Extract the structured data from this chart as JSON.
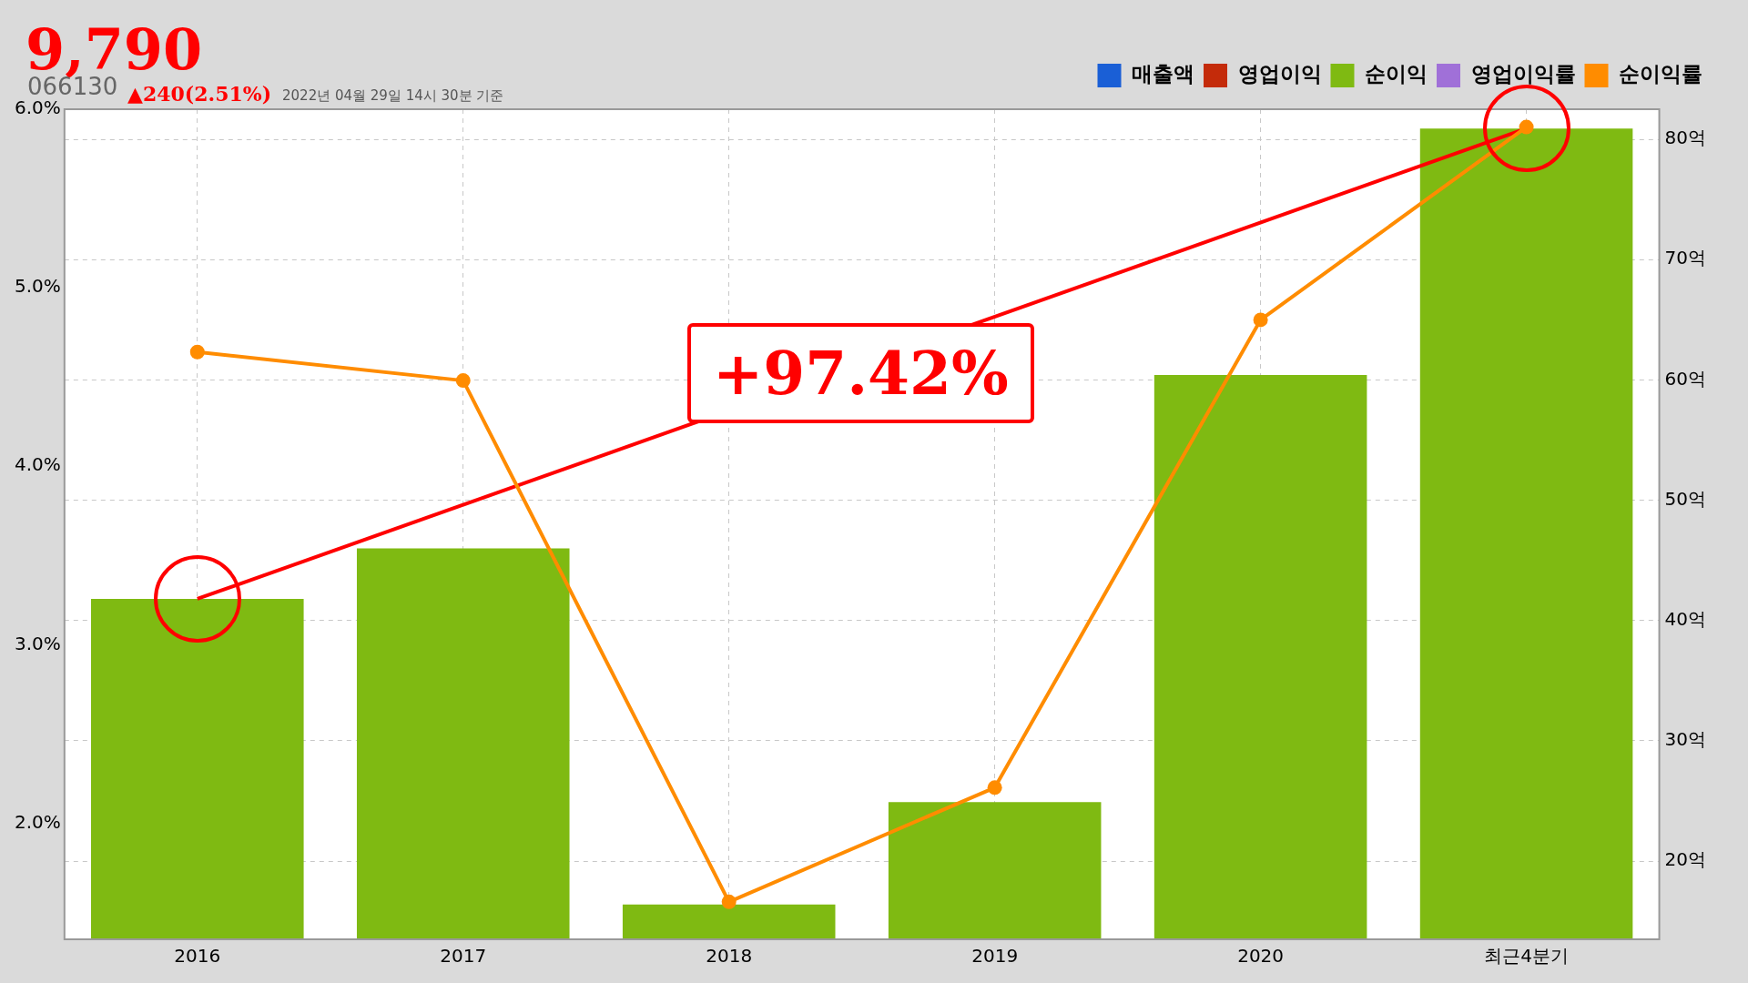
{
  "chart_data": {
    "type": "bar",
    "title": "9,790",
    "subtitle": "▲240(2.51%)",
    "annotations": [
      "066130",
      "2022년 04월 29일 14시 30분 기준",
      "+97.42%"
    ],
    "categories": [
      "2016",
      "2017",
      "2018",
      "2019",
      "2020",
      "최근4분기"
    ],
    "series": [
      {
        "name": "매출액",
        "type": "bar",
        "axis": "y2",
        "color": "#1a5fd6",
        "values": [
          null,
          null,
          null,
          null,
          null,
          null
        ]
      },
      {
        "name": "영업이익",
        "type": "bar",
        "axis": "y2",
        "color": "#c42b0a",
        "values": [
          null,
          null,
          null,
          null,
          null,
          null
        ]
      },
      {
        "name": "순이익",
        "type": "bar",
        "axis": "y2",
        "color": "#7fba12",
        "values": [
          41.8,
          46.0,
          16.4,
          24.9,
          60.4,
          80.9
        ]
      },
      {
        "name": "영업이익률",
        "type": "line",
        "color": "#a070d8",
        "values": [
          null,
          null,
          null,
          null,
          null,
          null
        ]
      },
      {
        "name": "순이익률",
        "type": "line",
        "color": "#ff8c00",
        "marker": "circle",
        "values": [
          4.64,
          4.48,
          1.56,
          2.2,
          4.82,
          5.9
        ]
      },
      {
        "type": "line",
        "axis": "y2",
        "color": "#ff0000",
        "values": [
          41.8,
          null,
          null,
          null,
          null,
          80.9
        ]
      }
    ],
    "ylim": [
      1.35,
      6.0
    ],
    "yticks": [
      {
        "value": 2,
        "label": "2.0%"
      },
      {
        "value": 3,
        "label": "3.0%"
      },
      {
        "value": 4,
        "label": "4.0%"
      },
      {
        "value": 5,
        "label": "5.0%"
      },
      {
        "value": 6,
        "label": "6.0%"
      }
    ],
    "y2lim": [
      13.5,
      82.5
    ],
    "y2ticks": [
      {
        "value": 20,
        "label": "20억"
      },
      {
        "value": 30,
        "label": "30억"
      },
      {
        "value": 40,
        "label": "40억"
      },
      {
        "value": 50,
        "label": "50억"
      },
      {
        "value": 60,
        "label": "60억"
      },
      {
        "value": 70,
        "label": "70억"
      },
      {
        "value": 80,
        "label": "80억"
      }
    ],
    "grid": true,
    "legend": "top right"
  }
}
